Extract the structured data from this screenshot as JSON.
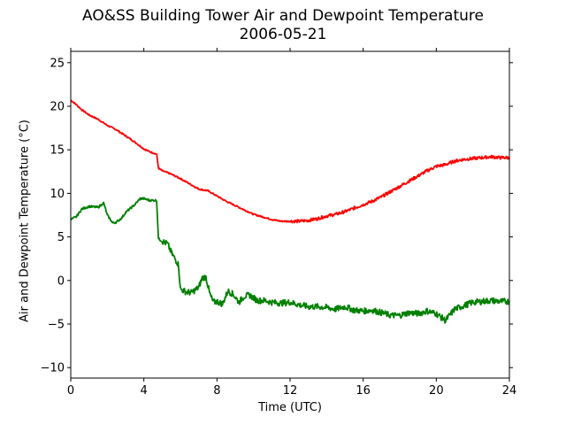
{
  "chart_data": {
    "type": "line",
    "title": "AO&SS Building Tower Air and Dewpoint Temperature",
    "subtitle": "2006-05-21",
    "xlabel": "Time (UTC)",
    "ylabel": "Air and Dewpoint Temperature (°C)",
    "xlim": [
      0,
      24
    ],
    "ylim": [
      -11.2,
      26.3
    ],
    "xticks": [
      0,
      4,
      8,
      12,
      16,
      20,
      24
    ],
    "yticks": [
      -10,
      -5,
      0,
      5,
      10,
      15,
      20,
      25
    ],
    "grid": false,
    "legend": "none",
    "series": [
      {
        "color": "#ff0000",
        "x": [
          0,
          0.3,
          0.6,
          1.0,
          1.5,
          2.0,
          2.5,
          3.0,
          3.5,
          4.0,
          4.3,
          4.7,
          4.8,
          5.0,
          5.5,
          6.0,
          6.5,
          7.0,
          7.5,
          8.0,
          8.5,
          9.0,
          9.5,
          10.0,
          10.5,
          11.0,
          11.5,
          12.0,
          12.5,
          13.0,
          13.5,
          14.0,
          14.5,
          15.0,
          15.5,
          16.0,
          16.5,
          17.0,
          17.5,
          18.0,
          18.5,
          19.0,
          19.5,
          20.0,
          20.5,
          21.0,
          21.5,
          22.0,
          22.5,
          23.0,
          23.5,
          24.0
        ],
        "values": [
          20.7,
          20.2,
          19.6,
          19.0,
          18.5,
          17.8,
          17.3,
          16.6,
          15.9,
          15.1,
          14.8,
          14.5,
          12.9,
          12.6,
          12.2,
          11.7,
          11.1,
          10.5,
          10.3,
          9.7,
          9.1,
          8.6,
          8.1,
          7.6,
          7.3,
          7.0,
          6.8,
          6.8,
          6.8,
          6.9,
          7.1,
          7.4,
          7.6,
          7.9,
          8.3,
          8.7,
          9.1,
          9.6,
          10.2,
          10.8,
          11.4,
          12.0,
          12.6,
          13.1,
          13.3,
          13.7,
          13.9,
          14.0,
          14.1,
          14.2,
          14.1,
          14.1
        ]
      },
      {
        "color": "#008000",
        "x": [
          0,
          0.3,
          0.6,
          1.0,
          1.5,
          1.8,
          2.0,
          2.3,
          2.5,
          2.8,
          3.0,
          3.5,
          3.8,
          4.0,
          4.3,
          4.7,
          4.8,
          5.0,
          5.3,
          5.5,
          5.7,
          5.9,
          6.0,
          6.3,
          6.6,
          7.0,
          7.2,
          7.4,
          7.6,
          7.8,
          8.0,
          8.3,
          8.6,
          8.9,
          9.2,
          9.5,
          9.8,
          10.2,
          10.6,
          11.0,
          11.5,
          12.0,
          12.5,
          13.0,
          13.5,
          14.0,
          14.5,
          15.0,
          15.5,
          16.0,
          16.5,
          17.0,
          17.5,
          18.0,
          18.5,
          19.0,
          19.5,
          20.0,
          20.5,
          21.0,
          21.5,
          22.0,
          22.5,
          23.0,
          23.5,
          24.0
        ],
        "values": [
          7.0,
          7.3,
          8.2,
          8.5,
          8.4,
          8.9,
          7.5,
          6.6,
          6.7,
          7.2,
          7.8,
          8.7,
          9.4,
          9.4,
          9.2,
          9.2,
          4.8,
          4.5,
          4.2,
          3.2,
          2.5,
          1.8,
          -1.0,
          -1.3,
          -1.4,
          -0.8,
          0.3,
          0.4,
          -1.5,
          -2.5,
          -2.4,
          -2.7,
          -1.2,
          -1.6,
          -2.5,
          -1.8,
          -1.7,
          -2.3,
          -2.3,
          -2.5,
          -2.6,
          -2.5,
          -2.8,
          -3.0,
          -3.0,
          -3.1,
          -3.3,
          -3.0,
          -3.4,
          -3.5,
          -3.4,
          -3.7,
          -4.0,
          -4.0,
          -3.7,
          -3.8,
          -3.5,
          -3.8,
          -4.6,
          -3.3,
          -2.9,
          -2.5,
          -2.4,
          -2.3,
          -2.4,
          -2.4
        ]
      }
    ]
  }
}
